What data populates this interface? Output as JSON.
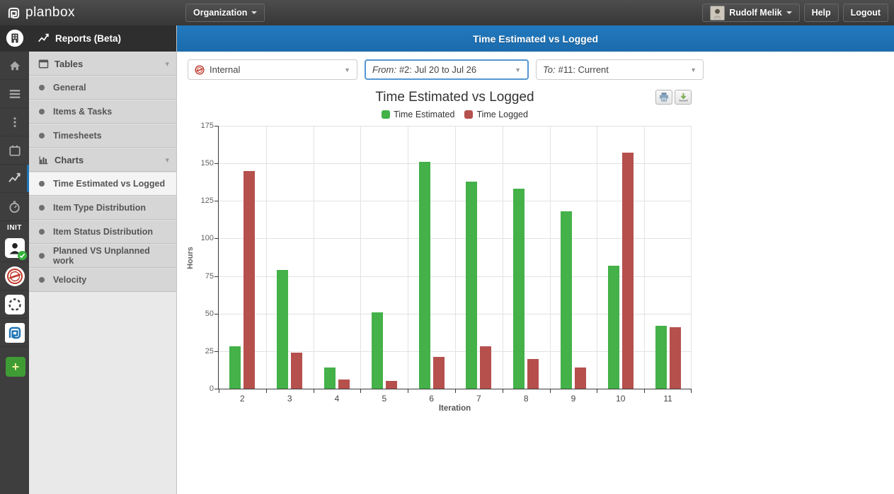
{
  "topbar": {
    "logo_text": "planbox",
    "organization_label": "Organization",
    "user_name": "Rudolf Melik",
    "help_label": "Help",
    "logout_label": "Logout"
  },
  "rail": {
    "init_label": "INIT"
  },
  "sidebar": {
    "header": "Reports (Beta)",
    "items": [
      {
        "type": "section",
        "label": "Tables",
        "icon": "tables-icon"
      },
      {
        "type": "item",
        "label": "General"
      },
      {
        "type": "item",
        "label": "Items & Tasks"
      },
      {
        "type": "item",
        "label": "Timesheets"
      },
      {
        "type": "section",
        "label": "Charts",
        "icon": "charts-icon"
      },
      {
        "type": "item",
        "label": "Time Estimated vs Logged",
        "active": true
      },
      {
        "type": "item",
        "label": "Item Type Distribution"
      },
      {
        "type": "item",
        "label": "Item Status Distribution"
      },
      {
        "type": "item",
        "label": "Planned VS Unplanned work"
      },
      {
        "type": "item",
        "label": "Velocity"
      }
    ]
  },
  "page_header": {
    "title": "Time Estimated vs Logged"
  },
  "filters": {
    "project": {
      "value": "Internal",
      "icon": "stamp-icon"
    },
    "from": {
      "prefix": "From:",
      "value": "#2: Jul 20 to Jul 26"
    },
    "to": {
      "prefix": "To:",
      "value": "#11: Current"
    }
  },
  "colors": {
    "accent_blue": "#1e73b4",
    "bar_green": "#44b149",
    "bar_red": "#b5504d"
  },
  "chart_data": {
    "type": "bar",
    "title": "Time Estimated vs Logged",
    "categories": [
      "2",
      "3",
      "4",
      "5",
      "6",
      "7",
      "8",
      "9",
      "10",
      "11"
    ],
    "series": [
      {
        "name": "Time Estimated",
        "color": "#44b149",
        "values": [
          28,
          79,
          14,
          51,
          151,
          138,
          133,
          118,
          82,
          42
        ]
      },
      {
        "name": "Time Logged",
        "color": "#b5504d",
        "values": [
          145,
          24,
          6,
          5,
          21,
          28,
          20,
          14,
          157,
          41
        ]
      }
    ],
    "xlabel": "Iteration",
    "ylabel": "Hours",
    "ylim": [
      0,
      175
    ],
    "ytick_step": 25,
    "grid": true,
    "legend_position": "top"
  }
}
